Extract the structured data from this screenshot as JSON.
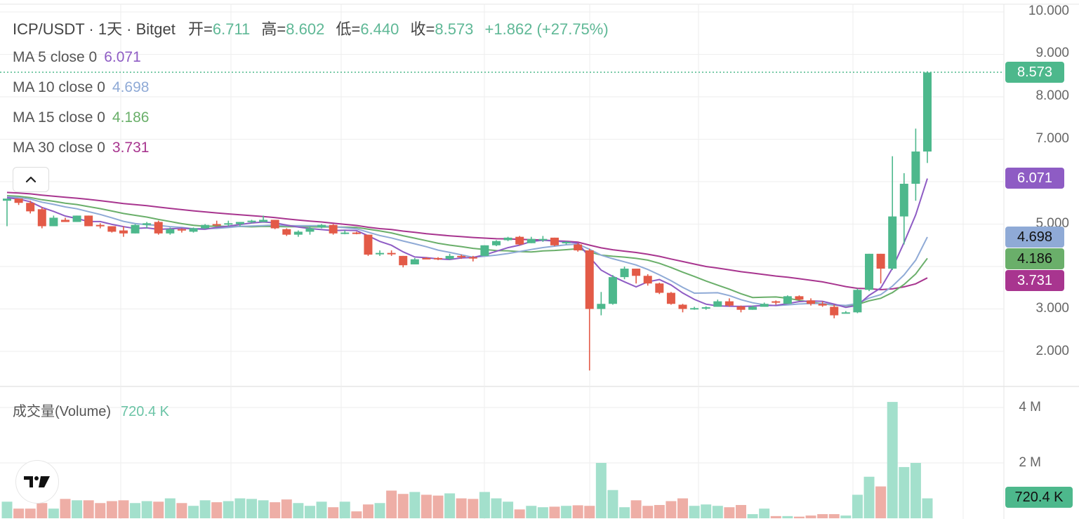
{
  "header": {
    "symbol": "ICP/USDT · 1天 · Bitget",
    "open_label": "开=",
    "open": "6.711",
    "high_label": "高=",
    "high": "8.602",
    "low_label": "低=",
    "low": "6.440",
    "close_label": "收=",
    "close": "8.573",
    "change": "+1.862 (+27.75%)"
  },
  "indicators": [
    {
      "label": "MA 5 close 0",
      "value": "6.071",
      "color": "#8e5cc4"
    },
    {
      "label": "MA 10 close 0",
      "value": "4.698",
      "color": "#8faad6"
    },
    {
      "label": "MA 15 close 0",
      "value": "4.186",
      "color": "#6aaf6a"
    },
    {
      "label": "MA 30 close 0",
      "value": "3.731",
      "color": "#a8358f"
    }
  ],
  "collapse_button": {
    "icon": "chevron-up-icon",
    "glyph": "⌃"
  },
  "volume_panel": {
    "label": "成交量(Volume)",
    "value": "720.4 K"
  },
  "price_axis": {
    "ticks": [
      "10.000",
      "9.000",
      "8.000",
      "7.000",
      "5.000",
      "3.000",
      "2.000"
    ],
    "tags": [
      {
        "value": "8.573",
        "bg": "#4db88c",
        "fg": "#ffffff"
      },
      {
        "value": "6.071",
        "bg": "#8e5cc4",
        "fg": "#ffffff"
      },
      {
        "value": "4.698",
        "bg": "#8faad6",
        "fg": "#111111"
      },
      {
        "value": "4.186",
        "bg": "#6aaf6a",
        "fg": "#111111"
      },
      {
        "value": "3.731",
        "bg": "#a8358f",
        "fg": "#ffffff"
      }
    ]
  },
  "volume_axis": {
    "ticks": [
      "4 M",
      "2 M"
    ],
    "tag": {
      "value": "720.4 K",
      "bg": "#4db88c",
      "fg": "#111111"
    }
  },
  "colors": {
    "up": "#4db88c",
    "down": "#e35a47",
    "vol_up": "#a3e0cc",
    "vol_down": "#eeaea6",
    "grid": "#eeeeee"
  },
  "chart_data": {
    "type": "candlestick",
    "title": "ICP/USDT · 1天 · Bitget",
    "y_range": [
      1.5,
      10.2
    ],
    "price_ticks": [
      2,
      3,
      4,
      5,
      6,
      7,
      8,
      9,
      10
    ],
    "volume_ticks_millions": [
      2,
      4
    ],
    "candles": [
      [
        5.55,
        5.55,
        4.95,
        5.6,
        "u"
      ],
      [
        5.6,
        5.6,
        5.45,
        5.5,
        "d"
      ],
      [
        5.5,
        5.55,
        5.25,
        5.3,
        "d"
      ],
      [
        5.35,
        5.4,
        4.9,
        4.95,
        "d"
      ],
      [
        4.95,
        5.2,
        4.95,
        5.15,
        "u"
      ],
      [
        5.1,
        5.15,
        5.05,
        5.05,
        "d"
      ],
      [
        5.05,
        5.2,
        5.05,
        5.2,
        "u"
      ],
      [
        5.2,
        5.2,
        4.95,
        4.95,
        "d"
      ],
      [
        4.98,
        5.02,
        4.9,
        4.95,
        "d"
      ],
      [
        4.95,
        4.95,
        4.8,
        4.82,
        "d"
      ],
      [
        4.85,
        4.95,
        4.7,
        4.78,
        "d"
      ],
      [
        4.78,
        5.0,
        4.78,
        4.98,
        "u"
      ],
      [
        4.98,
        5.05,
        4.9,
        5.02,
        "u"
      ],
      [
        5.05,
        5.08,
        4.75,
        4.78,
        "d"
      ],
      [
        4.78,
        4.92,
        4.75,
        4.88,
        "u"
      ],
      [
        4.88,
        4.9,
        4.8,
        4.85,
        "d"
      ],
      [
        4.82,
        4.92,
        4.8,
        4.9,
        "u"
      ],
      [
        4.9,
        5.0,
        4.88,
        4.98,
        "u"
      ],
      [
        4.98,
        5.08,
        4.95,
        5.0,
        "d"
      ],
      [
        5.0,
        5.08,
        4.95,
        5.02,
        "u"
      ],
      [
        5.0,
        5.05,
        4.95,
        5.05,
        "u"
      ],
      [
        5.05,
        5.1,
        5.02,
        5.08,
        "u"
      ],
      [
        5.05,
        5.2,
        5.05,
        5.1,
        "u"
      ],
      [
        5.1,
        5.1,
        4.88,
        4.9,
        "d"
      ],
      [
        4.88,
        4.9,
        4.72,
        4.75,
        "d"
      ],
      [
        4.75,
        4.85,
        4.7,
        4.82,
        "u"
      ],
      [
        4.82,
        4.95,
        4.75,
        4.9,
        "u"
      ],
      [
        4.92,
        5.0,
        4.9,
        4.98,
        "u"
      ],
      [
        4.98,
        5.0,
        4.75,
        4.78,
        "d"
      ],
      [
        4.8,
        4.85,
        4.76,
        4.8,
        "u"
      ],
      [
        4.8,
        4.82,
        4.76,
        4.78,
        "d"
      ],
      [
        4.75,
        4.75,
        4.25,
        4.28,
        "d"
      ],
      [
        4.32,
        4.38,
        4.25,
        4.32,
        "u"
      ],
      [
        4.32,
        4.38,
        4.25,
        4.32,
        "d"
      ],
      [
        4.25,
        4.25,
        3.98,
        4.03,
        "d"
      ],
      [
        4.05,
        4.2,
        4.05,
        4.17,
        "u"
      ],
      [
        4.2,
        4.22,
        4.18,
        4.2,
        "d"
      ],
      [
        4.2,
        4.22,
        4.15,
        4.18,
        "d"
      ],
      [
        4.18,
        4.3,
        4.15,
        4.25,
        "u"
      ],
      [
        4.25,
        4.28,
        4.18,
        4.22,
        "d"
      ],
      [
        4.22,
        4.25,
        4.12,
        4.22,
        "d"
      ],
      [
        4.25,
        4.5,
        4.25,
        4.5,
        "u"
      ],
      [
        4.5,
        4.62,
        4.48,
        4.6,
        "u"
      ],
      [
        4.62,
        4.7,
        4.6,
        4.68,
        "u"
      ],
      [
        4.7,
        4.72,
        4.5,
        4.52,
        "d"
      ],
      [
        4.55,
        4.7,
        4.55,
        4.65,
        "u"
      ],
      [
        4.65,
        4.72,
        4.58,
        4.65,
        "u"
      ],
      [
        4.68,
        4.68,
        4.48,
        4.5,
        "d"
      ],
      [
        4.55,
        4.6,
        4.52,
        4.58,
        "u"
      ],
      [
        4.52,
        4.55,
        4.35,
        4.38,
        "d"
      ],
      [
        4.38,
        4.42,
        1.55,
        3.0,
        "d"
      ],
      [
        3.0,
        3.4,
        2.85,
        3.12,
        "u"
      ],
      [
        3.12,
        3.8,
        3.1,
        3.75,
        "u"
      ],
      [
        3.75,
        4.0,
        3.7,
        3.95,
        "u"
      ],
      [
        3.95,
        3.95,
        3.6,
        3.78,
        "d"
      ],
      [
        3.78,
        3.82,
        3.55,
        3.6,
        "d"
      ],
      [
        3.6,
        3.62,
        3.35,
        3.38,
        "d"
      ],
      [
        3.38,
        3.4,
        3.1,
        3.12,
        "d"
      ],
      [
        3.1,
        3.12,
        2.92,
        3.0,
        "d"
      ],
      [
        3.0,
        3.05,
        2.98,
        3.02,
        "u"
      ],
      [
        3.02,
        3.06,
        2.98,
        3.04,
        "u"
      ],
      [
        3.05,
        3.22,
        3.05,
        3.18,
        "u"
      ],
      [
        3.18,
        3.25,
        3.05,
        3.08,
        "d"
      ],
      [
        3.06,
        3.08,
        2.92,
        2.98,
        "d"
      ],
      [
        2.98,
        3.08,
        2.98,
        3.05,
        "u"
      ],
      [
        3.05,
        3.15,
        3.05,
        3.12,
        "u"
      ],
      [
        3.15,
        3.2,
        3.1,
        3.18,
        "d"
      ],
      [
        3.12,
        3.32,
        3.12,
        3.3,
        "u"
      ],
      [
        3.3,
        3.32,
        3.2,
        3.22,
        "d"
      ],
      [
        3.2,
        3.25,
        3.08,
        3.12,
        "d"
      ],
      [
        3.12,
        3.18,
        3.05,
        3.08,
        "d"
      ],
      [
        3.05,
        3.1,
        2.78,
        2.85,
        "d"
      ],
      [
        2.9,
        2.95,
        2.9,
        2.92,
        "u"
      ],
      [
        2.92,
        3.48,
        2.9,
        3.45,
        "u"
      ],
      [
        3.45,
        4.3,
        3.42,
        4.3,
        "u"
      ],
      [
        4.3,
        4.3,
        3.6,
        3.95,
        "d"
      ],
      [
        3.95,
        6.6,
        3.92,
        5.18,
        "u"
      ],
      [
        5.18,
        6.2,
        4.52,
        5.95,
        "u"
      ],
      [
        5.95,
        7.25,
        5.55,
        6.71,
        "u"
      ],
      [
        6.71,
        8.602,
        6.44,
        8.573,
        "u"
      ]
    ],
    "candle_format": [
      "open",
      "high",
      "low",
      "close",
      "direction"
    ],
    "volume_millions": [
      0.6,
      0.35,
      0.35,
      0.55,
      0.35,
      0.7,
      0.65,
      0.65,
      0.55,
      0.62,
      0.65,
      0.55,
      0.62,
      0.6,
      0.72,
      0.55,
      0.45,
      0.65,
      0.58,
      0.62,
      0.72,
      0.7,
      0.65,
      0.58,
      0.68,
      0.55,
      0.45,
      0.6,
      0.4,
      0.6,
      0.25,
      0.5,
      0.55,
      1.0,
      0.88,
      0.95,
      0.85,
      0.82,
      0.9,
      0.72,
      0.7,
      0.95,
      0.72,
      0.6,
      0.32,
      0.45,
      0.4,
      0.42,
      0.45,
      0.47,
      0.45,
      2.0,
      1.02,
      0.4,
      0.65,
      0.45,
      0.48,
      0.62,
      0.72,
      0.45,
      0.5,
      0.45,
      0.4,
      0.48,
      0.15,
      0.35,
      0.08,
      0.08,
      0.06,
      0.1,
      0.15,
      0.15,
      0.1,
      0.85,
      1.5,
      1.15,
      4.2,
      1.85,
      2.0,
      0.72
    ],
    "ma": {
      "ma5_last": 6.071,
      "ma10_last": 4.698,
      "ma15_last": 4.186,
      "ma30_last": 3.731
    },
    "last_price": 8.573,
    "last_volume": "720.4 K"
  }
}
